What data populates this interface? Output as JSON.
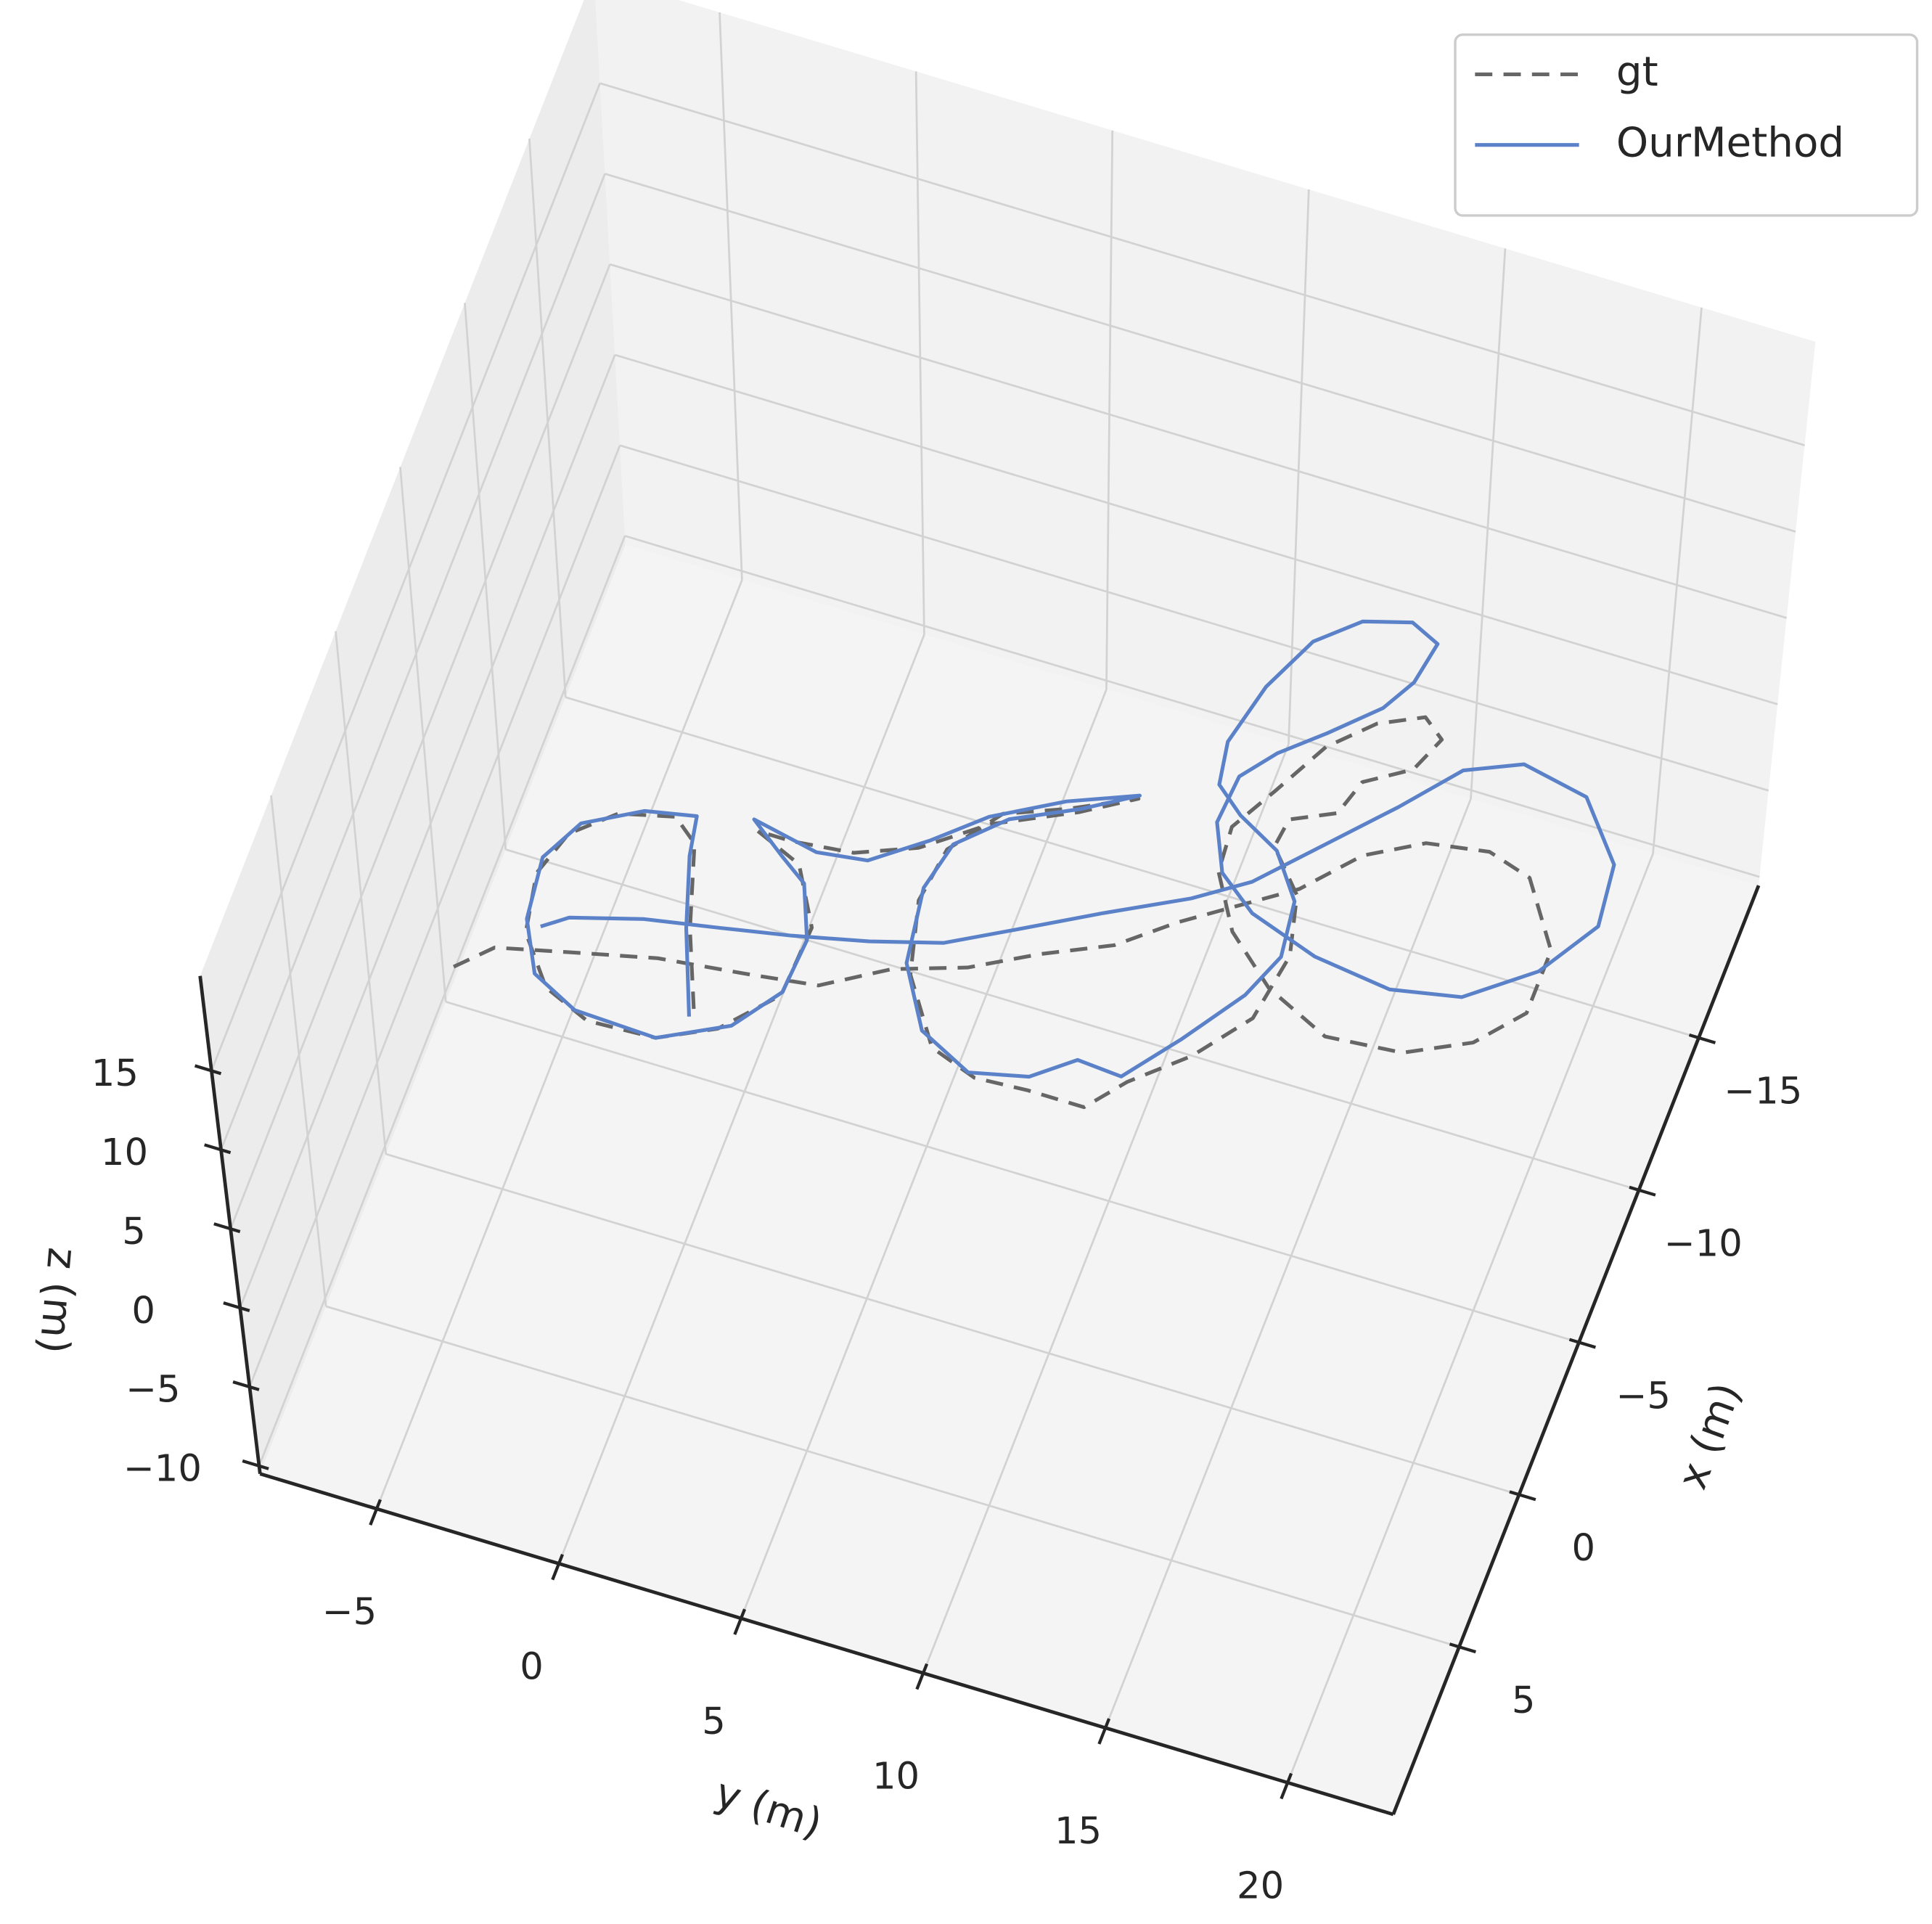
{
  "chart_data": {
    "type": "line3d",
    "xlabel": "x (m)",
    "ylabel": "y (m)",
    "zlabel": "z (m)",
    "xlim": [
      -20,
      10.5
    ],
    "ylim": [
      -8.2,
      22.9
    ],
    "zlim": [
      -10.5,
      21
    ],
    "xticks": [
      {
        "value": -15,
        "label": "−15"
      },
      {
        "value": -10,
        "label": "−10"
      },
      {
        "value": -5,
        "label": "−5"
      },
      0,
      5
    ],
    "yticks": [
      {
        "value": -5,
        "label": "−5"
      },
      0,
      5,
      10,
      15,
      20
    ],
    "zticks": [
      {
        "value": -10,
        "label": "−10"
      },
      {
        "value": -5,
        "label": "−5"
      },
      0,
      5,
      10,
      15
    ],
    "grid": true,
    "legend": "upper right",
    "series": [
      {
        "name": "gt",
        "color": "#666666",
        "linestyle": "dashed",
        "x": [
          -1.1,
          -2.0,
          -2.5,
          -3.1,
          -3.4,
          -3.7,
          -4.8,
          -5.5,
          -6.5,
          -7.4,
          -8.6,
          -9.6,
          -10.6,
          -12.1,
          -13.0,
          -13.3,
          -12.9,
          -11.0,
          -9.0,
          -7.7,
          -6.8,
          -6.6,
          -7.5,
          -8.8,
          -10.4,
          -11.8,
          -13.2,
          -14.9,
          -16.0,
          -16.6,
          -16.1,
          -15.0,
          -14.2,
          -13.1,
          -12.5,
          -11.6,
          -10.4,
          -8.6,
          -6.5,
          -4.9,
          -3.6,
          -2.5,
          -2.5,
          -2.4,
          -2.9,
          -4.8,
          -7.0,
          -8.7,
          -10.2,
          -10.9,
          -11.8,
          -10.9,
          -9.8,
          -8.5,
          -7.8,
          -7.6,
          -7.6,
          -7.0,
          -5.3,
          -3.1,
          -1.6,
          -0.8,
          -0.7,
          -1.3,
          -2.7,
          -4.5,
          -5.9,
          -6.9,
          -7.3,
          -6.7,
          -4.2,
          -1.8
        ],
        "y": [
          -6.3,
          -5.5,
          -3.7,
          -1.5,
          0.7,
          2.6,
          4.2,
          6.0,
          7.6,
          9.3,
          10.6,
          11.9,
          13.2,
          14.4,
          15.8,
          17.4,
          18.6,
          19.8,
          19.8,
          18.8,
          17.2,
          15.2,
          13.4,
          12.0,
          11.1,
          11.0,
          11.7,
          12.5,
          13.5,
          14.6,
          15.2,
          14.8,
          13.7,
          13.4,
          12.3,
          12.2,
          13.2,
          13.6,
          13.3,
          12.2,
          10.9,
          10.1,
          8.6,
          7.2,
          5.9,
          4.7,
          4.2,
          4.4,
          5.4,
          6.9,
          8.5,
          7.2,
          5.2,
          3.7,
          2.2,
          0.6,
          -0.3,
          1.0,
          1.9,
          1.8,
          0.6,
          -0.8,
          -2.6,
          -3.9,
          -4.9,
          -5.2,
          -4.8,
          -3.8,
          -2.4,
          -1.7,
          -1.0,
          -0.1
        ],
        "z": [
          0,
          0,
          0,
          0,
          0,
          0,
          0,
          0,
          0,
          0,
          0,
          0,
          0,
          0,
          0,
          0,
          0,
          0,
          0,
          0,
          0,
          0,
          0,
          0,
          0,
          0,
          0,
          0,
          0,
          0,
          0,
          0,
          0,
          0,
          0,
          0,
          0,
          0,
          0,
          0,
          0,
          0,
          0,
          0,
          0,
          0,
          0,
          0,
          0,
          0,
          0,
          0,
          0,
          0,
          0,
          0,
          0,
          0,
          0,
          0,
          0,
          0,
          0,
          0,
          0,
          0,
          0,
          0,
          0,
          0,
          0,
          0
        ]
      },
      {
        "name": "OurMethod",
        "color": "#5b82c8",
        "linestyle": "solid",
        "x": [
          -1.7,
          -4.2,
          -6.3,
          -7.5,
          -7.2,
          -6.3,
          -5.0,
          -3.1,
          -1.6,
          -0.9,
          -0.8,
          -1.8,
          -3.2,
          -4.9,
          -6.5,
          -7.1,
          -7.9,
          -7.5,
          -7.7,
          -8.8,
          -10.0,
          -11.1,
          -11.9,
          -11.0,
          -10.1,
          -8.9,
          -7.4,
          -5.1,
          -3.3,
          -2.5,
          -2.9,
          -3.8,
          -3.7,
          -5.3,
          -7.1,
          -8.5,
          -10.2,
          -11.5,
          -12.2,
          -12.9,
          -14.2,
          -16.1,
          -17.8,
          -18.8,
          -19.2,
          -18.8,
          -17.5,
          -16.5,
          -15.3,
          -14.3,
          -13.3,
          -11.8,
          -10.4,
          -9.5,
          -8.8,
          -8.5,
          -8.9,
          -10.3,
          -12.1,
          -14.0,
          -15.7,
          -16.1,
          -15.4,
          -13.8,
          -12.1,
          -10.4,
          -9.4,
          -8.2,
          -7.0,
          -6.0,
          -5.4,
          -4.9,
          -4.5,
          -4.1,
          -3.5,
          -3.0
        ],
        "y": [
          -0.2,
          -1.1,
          -1.7,
          -1.9,
          -3.2,
          -4.6,
          -5.2,
          -5.0,
          -4.3,
          -3.0,
          -0.8,
          0.9,
          1.8,
          1.9,
          1.3,
          0.5,
          -0.5,
          1.3,
          2.6,
          3.9,
          5.1,
          6.8,
          8.5,
          7.2,
          5.6,
          4.5,
          4.2,
          4.5,
          5.5,
          7.0,
          8.5,
          9.5,
          10.7,
          11.8,
          12.9,
          13.4,
          13.2,
          12.3,
          11.1,
          10.3,
          10.1,
          10.5,
          11.2,
          12.2,
          13.4,
          14.2,
          14.0,
          13.5,
          12.4,
          11.4,
          10.7,
          10.6,
          11.2,
          12.3,
          14.2,
          16.3,
          18.1,
          19.7,
          20.7,
          20.5,
          19.2,
          17.4,
          16.0,
          14.8,
          13.4,
          12.0,
          10.7,
          8.7,
          6.8,
          5.2,
          3.4,
          1.5,
          -0.3,
          -2.2,
          -4.0,
          -4.6
        ],
        "z": [
          0,
          0,
          0,
          0,
          0,
          0,
          0,
          0,
          0,
          0,
          0,
          0,
          0,
          0,
          0,
          0,
          0,
          0,
          0,
          0,
          0,
          0,
          0,
          0,
          0,
          0,
          0,
          0,
          0,
          0,
          0,
          0,
          0,
          0,
          0,
          0,
          0,
          0,
          0,
          0,
          0,
          0,
          0,
          0,
          0,
          0,
          0,
          0,
          0,
          0,
          0,
          0,
          0,
          0,
          0,
          0,
          0,
          0,
          0,
          0,
          0,
          0,
          0,
          0,
          0,
          0,
          0,
          0,
          0,
          0,
          0,
          0,
          0,
          0,
          0,
          0
        ]
      }
    ]
  }
}
